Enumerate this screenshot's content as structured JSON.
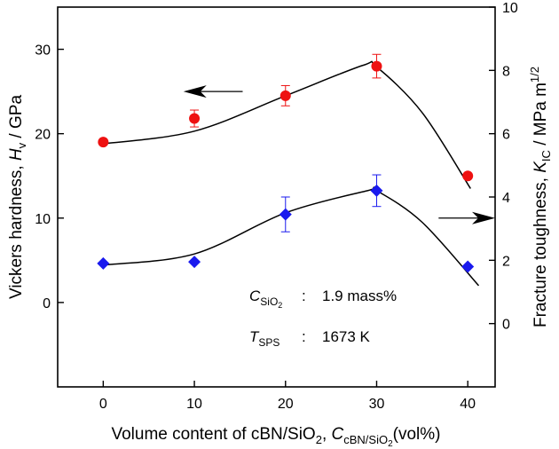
{
  "colors": {
    "hardness": "#ee1111",
    "toughness": "#1a1aee",
    "axis": "#000000",
    "curve": "#000000"
  },
  "chart_data": {
    "type": "scatter",
    "x_ticks": [
      "0",
      "10",
      "20",
      "30",
      "40"
    ],
    "y_left_ticks": [
      "0",
      "10",
      "20",
      "30"
    ],
    "y_right_ticks": [
      "0",
      "2",
      "4",
      "6",
      "8",
      "10"
    ],
    "xlim": [
      -5,
      43
    ],
    "ylim_left": [
      -10,
      35
    ],
    "ylim_right": [
      -2,
      10
    ],
    "xlabel": {
      "main": "Volume content of cBN/SiO",
      "sub": "2",
      "sep": ", ",
      "sym": "C",
      "sym_sub": "cBN/SiO",
      "sym_sub_sub": "2",
      "unit": "(vol%)"
    },
    "ylabel_left": {
      "main": "Vickers hardness, ",
      "sym": "H",
      "sym_sub": "v",
      "unit": " / GPa"
    },
    "ylabel_right": {
      "main": "Fracture toughness, ",
      "sym": "K",
      "sym_sub": "IC",
      "unit": " / MPa m",
      "unit_sup": "1/2"
    },
    "series": [
      {
        "axis": "left",
        "marker": "circle",
        "x": [
          0,
          10,
          20,
          30,
          40
        ],
        "y": [
          19.0,
          21.8,
          24.5,
          28.0,
          15.0
        ],
        "err": [
          0,
          1.0,
          1.2,
          1.4,
          0
        ],
        "curve_x": [
          0,
          10,
          20,
          28.5,
          30,
          35,
          40.3
        ],
        "curve_y": [
          18.8,
          20.3,
          24.5,
          28.1,
          27.9,
          22.5,
          13.5
        ]
      },
      {
        "axis": "right",
        "marker": "diamond",
        "x": [
          0,
          10,
          20,
          30,
          40
        ],
        "y": [
          1.9,
          1.95,
          3.45,
          4.2,
          1.8
        ],
        "err": [
          0,
          0,
          0.55,
          0.5,
          0
        ],
        "curve_x": [
          0,
          10,
          20,
          29,
          30,
          35,
          41.2
        ],
        "curve_y": [
          1.85,
          2.2,
          3.5,
          4.2,
          4.2,
          3.2,
          1.2
        ]
      }
    ],
    "annotations": [
      {
        "sym": "C",
        "sub": "SiO",
        "subsub": "2",
        "colon": ":",
        "value": "1.9 mass%"
      },
      {
        "sym": "T",
        "sub": "SPS",
        "colon": ":",
        "value": "1673 K"
      }
    ],
    "arrows": [
      {
        "points_to": "left",
        "x_from": 15.3,
        "x_to": 8.8,
        "y_left": 25.0
      },
      {
        "points_to": "right",
        "x_from": 36.8,
        "x_to": 43.0,
        "y_left": 10.0
      }
    ]
  }
}
